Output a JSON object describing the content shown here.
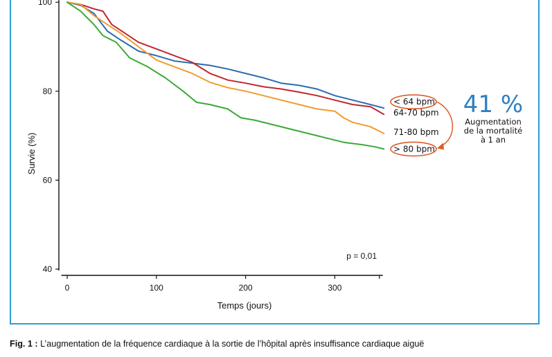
{
  "chart_data": {
    "type": "line",
    "xlabel": "Temps (jours)",
    "ylabel": "Survie (%)",
    "xlim": [
      -5,
      360
    ],
    "ylim": [
      40,
      100
    ],
    "xticks": [
      0,
      100,
      200,
      300
    ],
    "yticks": [
      40,
      60,
      80,
      100
    ],
    "p_value_label": "p = 0,01",
    "colors": {
      "series1": "#2b6cb0",
      "series2": "#c0262d",
      "series3": "#f29a2e",
      "series4": "#3aa935",
      "annotation": "#e05a2b",
      "frame": "#2d9cd6"
    },
    "series": [
      {
        "name": "< 64 bpm",
        "values": [
          [
            0,
            100
          ],
          [
            15,
            99.3
          ],
          [
            30,
            97.5
          ],
          [
            45,
            93.5
          ],
          [
            60,
            91.5
          ],
          [
            80,
            89
          ],
          [
            100,
            88
          ],
          [
            120,
            86.8
          ],
          [
            140,
            86.3
          ],
          [
            160,
            85.8
          ],
          [
            180,
            85
          ],
          [
            200,
            84
          ],
          [
            220,
            83
          ],
          [
            240,
            81.8
          ],
          [
            260,
            81.3
          ],
          [
            280,
            80.5
          ],
          [
            300,
            79
          ],
          [
            320,
            78
          ],
          [
            340,
            77
          ],
          [
            355,
            76.2
          ]
        ]
      },
      {
        "name": "64-70 bpm",
        "values": [
          [
            0,
            100
          ],
          [
            15,
            99.5
          ],
          [
            30,
            98.5
          ],
          [
            40,
            98
          ],
          [
            50,
            95
          ],
          [
            65,
            93
          ],
          [
            80,
            91
          ],
          [
            100,
            89.5
          ],
          [
            120,
            88
          ],
          [
            140,
            86.5
          ],
          [
            160,
            84
          ],
          [
            180,
            82.5
          ],
          [
            200,
            81.8
          ],
          [
            220,
            81
          ],
          [
            240,
            80.5
          ],
          [
            260,
            79.8
          ],
          [
            280,
            79
          ],
          [
            300,
            78
          ],
          [
            320,
            77
          ],
          [
            340,
            76.5
          ],
          [
            355,
            74.8
          ]
        ]
      },
      {
        "name": "71-80 bpm",
        "values": [
          [
            0,
            100
          ],
          [
            15,
            99.5
          ],
          [
            30,
            97
          ],
          [
            45,
            95
          ],
          [
            60,
            93
          ],
          [
            80,
            90
          ],
          [
            100,
            87
          ],
          [
            120,
            85.5
          ],
          [
            140,
            84
          ],
          [
            160,
            82
          ],
          [
            180,
            80.8
          ],
          [
            200,
            80
          ],
          [
            220,
            79
          ],
          [
            240,
            78
          ],
          [
            260,
            77
          ],
          [
            280,
            76
          ],
          [
            300,
            75.5
          ],
          [
            310,
            74
          ],
          [
            320,
            73
          ],
          [
            340,
            72
          ],
          [
            355,
            70.5
          ]
        ]
      },
      {
        "name": "> 80 bpm",
        "values": [
          [
            0,
            100
          ],
          [
            15,
            98
          ],
          [
            30,
            95
          ],
          [
            40,
            92.5
          ],
          [
            55,
            91
          ],
          [
            70,
            87.5
          ],
          [
            90,
            85.5
          ],
          [
            110,
            83
          ],
          [
            130,
            80
          ],
          [
            145,
            77.5
          ],
          [
            160,
            77
          ],
          [
            180,
            76
          ],
          [
            195,
            74
          ],
          [
            210,
            73.5
          ],
          [
            230,
            72.5
          ],
          [
            250,
            71.5
          ],
          [
            270,
            70.5
          ],
          [
            290,
            69.5
          ],
          [
            310,
            68.5
          ],
          [
            330,
            68
          ],
          [
            345,
            67.5
          ],
          [
            355,
            67
          ]
        ]
      }
    ],
    "annotation": {
      "big": "41 %",
      "line1": "Augmentation",
      "line2": "de la mortalité",
      "line3": "à 1 an"
    }
  },
  "caption": {
    "prefix": "Fig. 1 :",
    "text": " L’augmentation de la fréquence cardiaque à la sortie de l’hôpital après insuffisance cardiaque aiguë"
  }
}
